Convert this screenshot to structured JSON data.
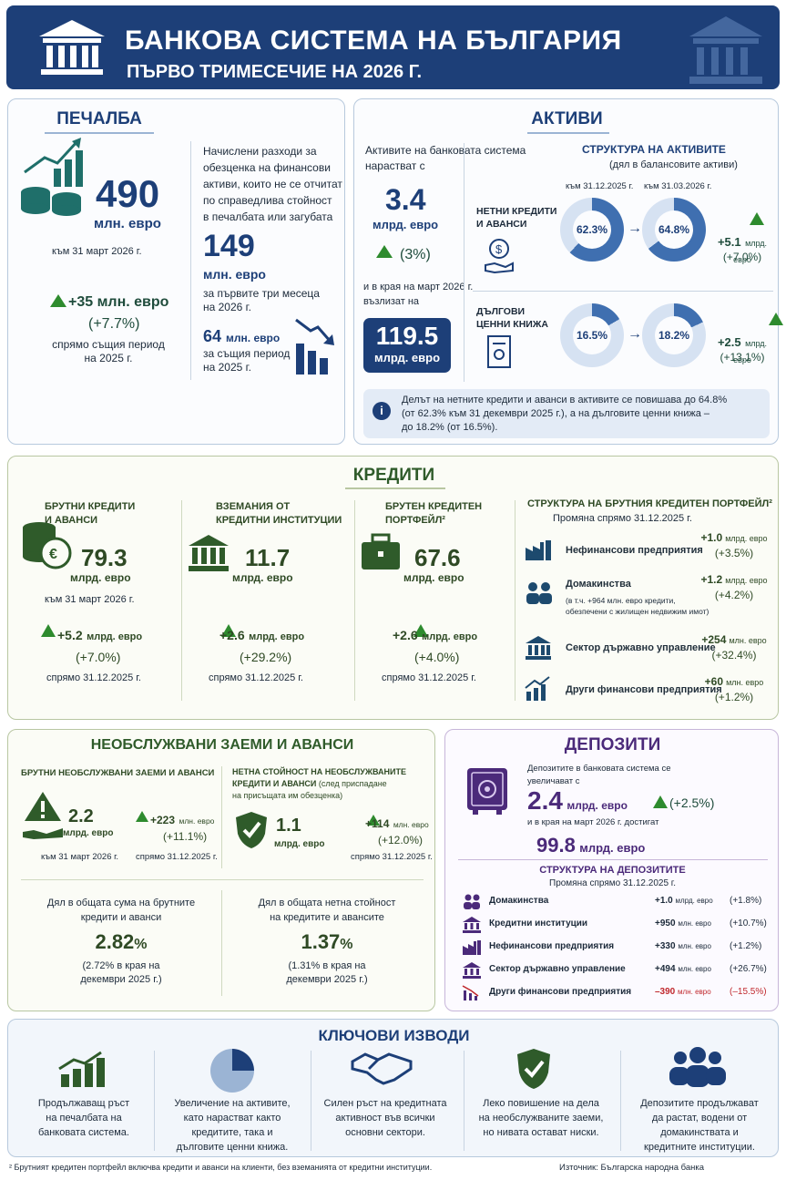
{
  "header": {
    "title": "БАНКОВА СИСТЕМА НА БЪЛГАРИЯ",
    "subtitle": "ПЪРВО ТРИМЕСЕЧИЕ НА 2026 Г."
  },
  "profit": {
    "title": "ПЕЧАЛБА",
    "value": "490",
    "unit": "млн. евро",
    "date": "към 31 март 2026 г.",
    "change": "+35 млн. евро",
    "change_pct": "(+7.7%)",
    "change_note1": "спрямо същия период",
    "change_note2": "на 2025 г.",
    "side_text": [
      "Начислени разходи за",
      "обезценка на финансови",
      "активи, които не се отчитат",
      "по справедлива стойност",
      "в печалбата или загубата"
    ],
    "imp_value": "149",
    "imp_unit": "млн. евро",
    "imp_note1": "за първите три месеца",
    "imp_note2": "на 2026 г.",
    "prev_value": "64",
    "prev_unit": "млн. евро",
    "prev_note1": "за същия период",
    "prev_note2": "на 2025 г."
  },
  "assets": {
    "title": "АКТИВИ",
    "intro1": "Активите на банковата система",
    "intro2": "нарастват с",
    "growth": "3.4",
    "growth_unit": "млрд. евро",
    "growth_pct": "(3%)",
    "end_note1": "и в края на март 2026 г.",
    "end_note2": "възлизат на",
    "total": "119.5",
    "total_unit": "млрд. евро",
    "struct_title": "СТРУКТУРА НА АКТИВИТЕ",
    "struct_sub": "(дял в балансовите активи)",
    "col1": "към 31.12.2025 г.",
    "col2": "към 31.03.2026 г.",
    "loans_label1": "НЕТНИ КРЕДИТИ",
    "loans_label2": "И АВАНСИ",
    "loans_before": "62.3%",
    "loans_after": "64.8%",
    "loans_chg": "+5.1",
    "loans_chg_unit": "млрд. евро",
    "loans_chg_pct": "(+7.0%)",
    "debt_label1": "ДЪЛГОВИ",
    "debt_label2": "ЦЕННИ КНИЖА",
    "debt_before": "16.5%",
    "debt_after": "18.2%",
    "debt_chg": "+2.5",
    "debt_chg_unit": "млрд. евро",
    "debt_chg_pct": "(+13.1%)",
    "arrow": "→",
    "info1": "Делът на нетните кредити и аванси в активите се повишава до 64.8%",
    "info2": "(от 62.3% към 31 декември 2025 г.), а на дълговите ценни книжа –",
    "info3": "до 18.2% (от 16.5%)."
  },
  "credits": {
    "title": "КРЕДИТИ",
    "c1": {
      "l1": "БРУТНИ КРЕДИТИ",
      "l2": "И АВАНСИ",
      "value": "79.3",
      "unit": "млрд. евро",
      "date": "към 31 март 2026 г.",
      "chg": "+5.2",
      "chg_unit": "млрд. евро",
      "pct": "(+7.0%)",
      "note": "спрямо 31.12.2025 г."
    },
    "c2": {
      "l1": "ВЗЕМАНИЯ ОТ",
      "l2": "КРЕДИТНИ ИНСТИТУЦИИ",
      "value": "11.7",
      "unit": "млрд. евро",
      "chg": "+2.6",
      "chg_unit": "млрд. евро",
      "pct": "(+29.2%)",
      "note": "спрямо 31.12.2025 г."
    },
    "c3": {
      "l1": "БРУТЕН КРЕДИТЕН",
      "l2": "ПОРТФЕЙЛ²",
      "value": "67.6",
      "unit": "млрд. евро",
      "chg": "+2.6",
      "chg_unit": "млрд. евро",
      "pct": "(+4.0%)",
      "note": "спрямо 31.12.2025 г."
    },
    "struct_title": "СТРУКТУРА НА БРУТНИЯ КРЕДИТЕН ПОРТФЕЙЛ²",
    "struct_sub": "Промяна спрямо 31.12.2025 г.",
    "rows": [
      {
        "label": "Нефинансови предприятия",
        "chg": "+1.0",
        "unit": "млрд. евро",
        "pct": "(+3.5%)"
      },
      {
        "label": "Домакинства",
        "note1": "(в т.ч. +964 млн. евро кредити,",
        "note2": "обезпечени с жилищен недвижим имот)",
        "chg": "+1.2",
        "unit": "млрд. евро",
        "pct": "(+4.2%)"
      },
      {
        "label": "Сектор държавно управление",
        "chg": "+254",
        "unit": "млн. евро",
        "pct": "(+32.4%)"
      },
      {
        "label": "Други финансови предприятия",
        "chg": "+60",
        "unit": "млн. евро",
        "pct": "(+1.2%)"
      }
    ]
  },
  "npl": {
    "title": "НЕОБСЛУЖВАНИ ЗАЕМИ И АВАНСИ",
    "h1": "БРУТНИ НЕОБСЛУЖВАНИ ЗАЕМИ И АВАНСИ",
    "v1": "2.2",
    "u1": "млрд. евро",
    "d1": "към 31 март 2026 г.",
    "chg1": "+223",
    "chg1_unit": "млн. евро",
    "pct1": "(+11.1%)",
    "note1": "спрямо 31.12.2025 г.",
    "h2a": "НЕТНА СТОЙНОСТ НА НЕОБСЛУЖВАНИТЕ",
    "h2b": "КРЕДИТИ И АВАНСИ",
    "h2c": "(след приспадане",
    "h2d": "на присъщата им обезценка)",
    "v2": "1.1",
    "u2": "млрд. евро",
    "chg2": "+114",
    "chg2_unit": "млн. евро",
    "pct2": "(+12.0%)",
    "note2": "спрямо 31.12.2025 г.",
    "s1a": "Дял в общата сума на брутните",
    "s1b": "кредити и аванси",
    "s1v": "2.82",
    "s1p": "%",
    "s1n1": "(2.72% в края на",
    "s1n2": "декември 2025 г.)",
    "s2a": "Дял в общата нетна стойност",
    "s2b": "на кредитите и авансите",
    "s2v": "1.37",
    "s2p": "%",
    "s2n1": "(1.31% в края на",
    "s2n2": "декември 2025 г.)"
  },
  "deposits": {
    "title": "ДЕПОЗИТИ",
    "intro1": "Депозитите в банковата система се",
    "intro2": "увеличават с",
    "growth": "2.4",
    "growth_unit": "млрд. евро",
    "growth_pct": "(+2.5%)",
    "end_note": "и в края на март 2026 г. достигат",
    "total": "99.8",
    "total_unit": "млрд. евро",
    "struct_title": "СТРУКТУРА НА ДЕПОЗИТИТЕ",
    "struct_sub": "Промяна спрямо 31.12.2025 г.",
    "rows": [
      {
        "label": "Домакинства",
        "chg": "+1.0",
        "unit": "млрд. евро",
        "pct": "(+1.8%)"
      },
      {
        "label": "Кредитни институции",
        "chg": "+950",
        "unit": "млн. евро",
        "pct": "(+10.7%)"
      },
      {
        "label": "Нефинансови предприятия",
        "chg": "+330",
        "unit": "млн. евро",
        "pct": "(+1.2%)"
      },
      {
        "label": "Сектор държавно управление",
        "chg": "+494",
        "unit": "млн. евро",
        "pct": "(+26.7%)"
      },
      {
        "label": "Други финансови предприятия",
        "chg": "–390",
        "unit": "млн. евро",
        "pct": "(–15.5%)"
      }
    ]
  },
  "conclusions": {
    "title": "КЛЮЧОВИ ИЗВОДИ",
    "items": [
      [
        "Продължаващ ръст",
        "на печалбата на",
        "банковата система."
      ],
      [
        "Увеличение на активите,",
        "като нарастват както",
        "кредитите, така и",
        "дълговите ценни книжа."
      ],
      [
        "Силен ръст на кредитната",
        "активност във всички",
        "основни сектори."
      ],
      [
        "Леко повишение на дела",
        "на необслужваните заеми,",
        "но нивата остават ниски."
      ],
      [
        "Депозитите продължават",
        "да растат, водени от",
        "домакинствата и",
        "кредитните институции."
      ]
    ]
  },
  "footnote": "² Брутният кредитен портфейл включва кредити и аванси на клиенти, без вземанията от кредитни институции.",
  "source": "Източник: Българска народна банка",
  "colors": {
    "navy": "#1d3f78",
    "green_arrow": "#2e8b2e",
    "purple": "#4b2a7a",
    "red": "#c0282d"
  }
}
